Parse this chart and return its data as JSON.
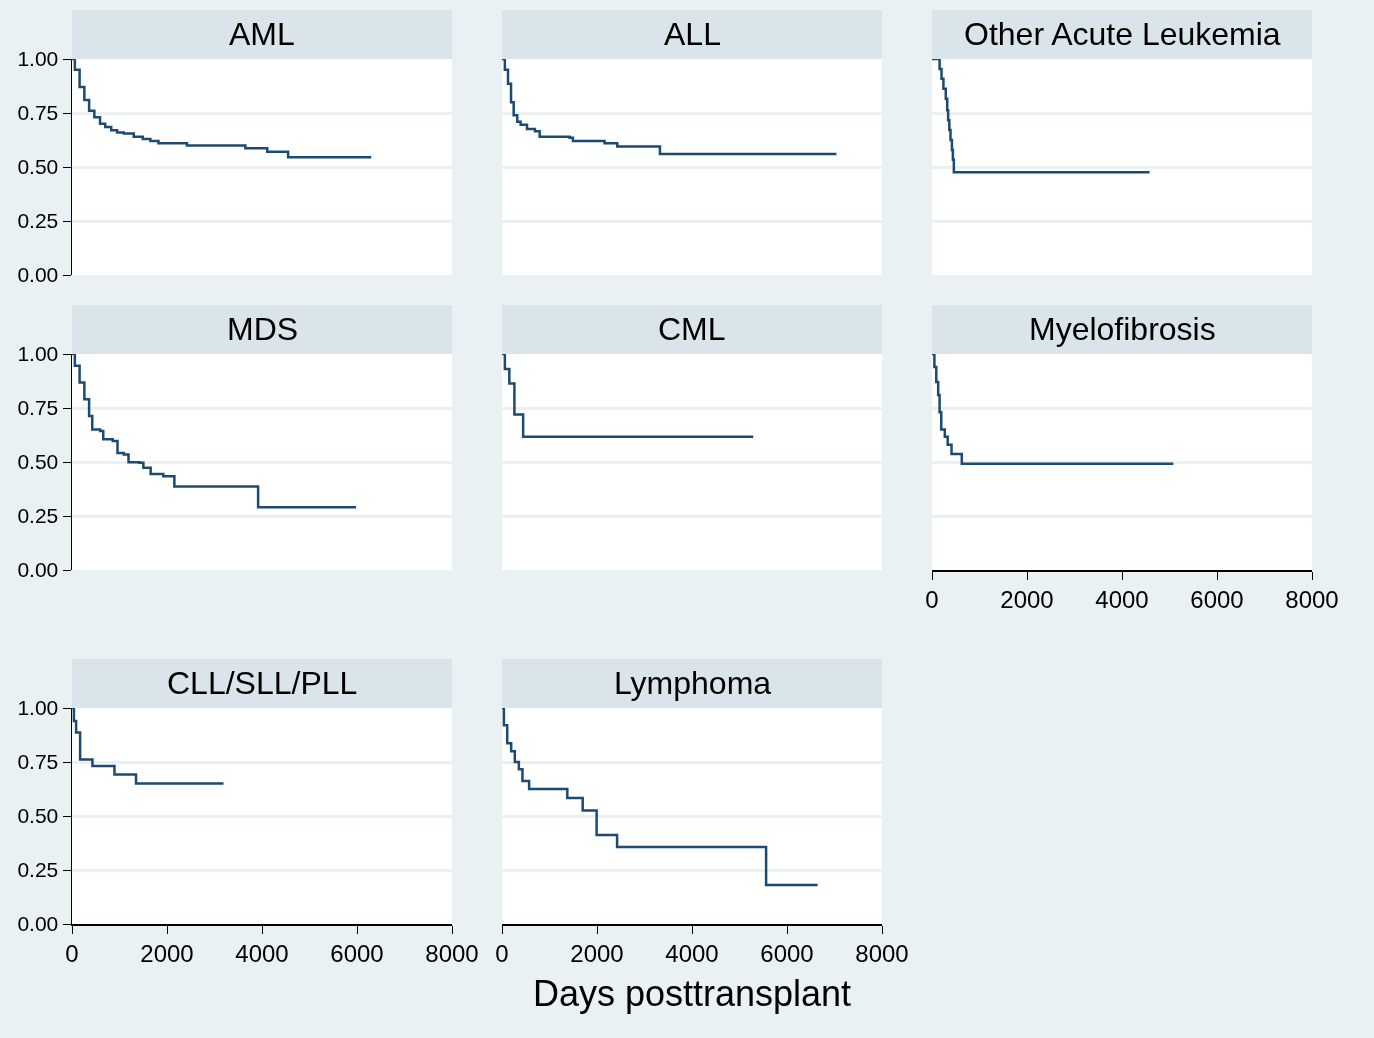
{
  "chart_data": [
    {
      "type": "step",
      "title": "AML",
      "xlim": [
        0,
        8000
      ],
      "xticks": [
        0,
        2000,
        4000,
        6000,
        8000
      ],
      "ylim": [
        0,
        1
      ],
      "yticks": [
        {
          "value": 0,
          "label": "0.00"
        },
        {
          "value": 0.25,
          "label": "0.25"
        },
        {
          "value": 0.5,
          "label": "0.50"
        },
        {
          "value": 0.75,
          "label": "0.75"
        },
        {
          "value": 1,
          "label": "1.00"
        }
      ],
      "grid": "y",
      "tick_labels": "y",
      "x": [
        0,
        60,
        160,
        260,
        360,
        470,
        590,
        700,
        825,
        950,
        1090,
        1300,
        1490,
        1650,
        1820,
        2420,
        3650,
        4110,
        4550,
        6300
      ],
      "series": [
        {
          "color": "#1c4a70",
          "values": [
            1,
            0.95,
            0.87,
            0.81,
            0.76,
            0.73,
            0.7,
            0.685,
            0.67,
            0.66,
            0.655,
            0.64,
            0.63,
            0.62,
            0.61,
            0.6,
            0.587,
            0.571,
            0.545,
            0.545
          ]
        }
      ]
    },
    {
      "type": "step",
      "title": "ALL",
      "xlim": [
        0,
        8000
      ],
      "xticks": [
        0,
        2000,
        4000,
        6000,
        8000
      ],
      "ylim": [
        0,
        1
      ],
      "yticks": [
        0,
        0.25,
        0.5,
        0.75,
        1
      ],
      "grid": "y",
      "tick_labels": false,
      "x": [
        0,
        60,
        126,
        190,
        246,
        320,
        393,
        526,
        693,
        793,
        1425,
        1493,
        2160,
        2427,
        3325,
        7040
      ],
      "series": [
        {
          "color": "#1c4a70",
          "values": [
            1,
            0.95,
            0.885,
            0.8,
            0.74,
            0.71,
            0.696,
            0.676,
            0.665,
            0.64,
            0.635,
            0.62,
            0.61,
            0.595,
            0.56,
            0.56
          ]
        }
      ]
    },
    {
      "type": "step",
      "title": "Other Acute Leukemia",
      "xlim": [
        0,
        8000
      ],
      "xticks": [
        0,
        2000,
        4000,
        6000,
        8000
      ],
      "ylim": [
        0,
        1
      ],
      "yticks": [
        0,
        0.25,
        0.5,
        0.75,
        1
      ],
      "grid": "y",
      "tick_labels": false,
      "x": [
        0,
        160,
        200,
        240,
        290,
        320,
        340,
        365,
        390,
        420,
        440,
        460,
        4580
      ],
      "series": [
        {
          "color": "#1c4a70",
          "values": [
            1,
            0.954,
            0.908,
            0.862,
            0.816,
            0.763,
            0.717,
            0.671,
            0.625,
            0.579,
            0.533,
            0.476,
            0.476
          ]
        }
      ]
    },
    {
      "type": "step",
      "title": "MDS",
      "xlim": [
        0,
        8000
      ],
      "xticks": [
        0,
        2000,
        4000,
        6000,
        8000
      ],
      "ylim": [
        0,
        1
      ],
      "yticks": [
        {
          "value": 0,
          "label": "0.00"
        },
        {
          "value": 0.25,
          "label": "0.25"
        },
        {
          "value": 0.5,
          "label": "0.50"
        },
        {
          "value": 0.75,
          "label": "0.75"
        },
        {
          "value": 1,
          "label": "1.00"
        }
      ],
      "grid": "y",
      "tick_labels": "y",
      "x": [
        0,
        60,
        160,
        260,
        360,
        426,
        593,
        658,
        858,
        958,
        1090,
        1190,
        1423,
        1503,
        1656,
        1922,
        2155,
        3918,
        5980
      ],
      "series": [
        {
          "color": "#1c4a70",
          "values": [
            1,
            0.946,
            0.868,
            0.79,
            0.713,
            0.651,
            0.643,
            0.605,
            0.597,
            0.542,
            0.535,
            0.499,
            0.496,
            0.473,
            0.445,
            0.434,
            0.387,
            0.29,
            0.29
          ]
        }
      ]
    },
    {
      "type": "step",
      "title": "CML",
      "xlim": [
        0,
        8000
      ],
      "xticks": [
        0,
        2000,
        4000,
        6000,
        8000
      ],
      "ylim": [
        0,
        1
      ],
      "yticks": [
        0,
        0.25,
        0.5,
        0.75,
        1
      ],
      "grid": "y",
      "tick_labels": false,
      "x": [
        0,
        60,
        154,
        261,
        445,
        5290
      ],
      "series": [
        {
          "color": "#1c4a70",
          "values": [
            1,
            0.93,
            0.863,
            0.72,
            0.617,
            0.617
          ]
        }
      ]
    },
    {
      "type": "step",
      "title": "Myelofibrosis",
      "xlim": [
        0,
        8000
      ],
      "xticks": [
        0,
        2000,
        4000,
        6000,
        8000
      ],
      "ylim": [
        0,
        1
      ],
      "yticks": [
        0,
        0.25,
        0.5,
        0.75,
        1
      ],
      "grid": "y",
      "tick_labels": "x",
      "x": [
        0,
        50,
        90,
        130,
        160,
        195,
        270,
        330,
        411,
        627,
        5080
      ],
      "series": [
        {
          "color": "#1c4a70",
          "values": [
            1,
            0.94,
            0.87,
            0.81,
            0.73,
            0.65,
            0.617,
            0.58,
            0.537,
            0.492,
            0.492
          ]
        }
      ]
    },
    {
      "type": "step",
      "title": "CLL/SLL/PLL",
      "xlim": [
        0,
        8000
      ],
      "xticks": [
        0,
        2000,
        4000,
        6000,
        8000
      ],
      "ylim": [
        0,
        1
      ],
      "yticks": [
        {
          "value": 0,
          "label": "0.00"
        },
        {
          "value": 0.25,
          "label": "0.25"
        },
        {
          "value": 0.5,
          "label": "0.50"
        },
        {
          "value": 0.75,
          "label": "0.75"
        },
        {
          "value": 1,
          "label": "1.00"
        }
      ],
      "grid": "y",
      "x": [
        0,
        40,
        86,
        171,
        430,
        894,
        1348,
        3190
      ],
      "series": [
        {
          "color": "#1c4a70",
          "values": [
            1,
            0.94,
            0.887,
            0.762,
            0.732,
            0.692,
            0.65,
            0.65
          ]
        }
      ]
    },
    {
      "type": "step",
      "title": "Lymphoma",
      "xlabel": "Days posttransplant",
      "xlim": [
        0,
        8000
      ],
      "xticks": [
        0,
        2000,
        4000,
        6000,
        8000
      ],
      "ylim": [
        0,
        1
      ],
      "yticks": [
        0,
        0.25,
        0.5,
        0.75,
        1
      ],
      "grid": "y",
      "tick_labels": "x",
      "x": [
        0,
        40,
        110,
        193,
        270,
        355,
        431,
        571,
        1375,
        1699,
        1992,
        2423,
        5560,
        6645
      ],
      "series": [
        {
          "color": "#1c4a70",
          "values": [
            1,
            0.92,
            0.837,
            0.8,
            0.75,
            0.717,
            0.662,
            0.625,
            0.583,
            0.525,
            0.412,
            0.357,
            0.18,
            0.18
          ]
        }
      ]
    }
  ]
}
